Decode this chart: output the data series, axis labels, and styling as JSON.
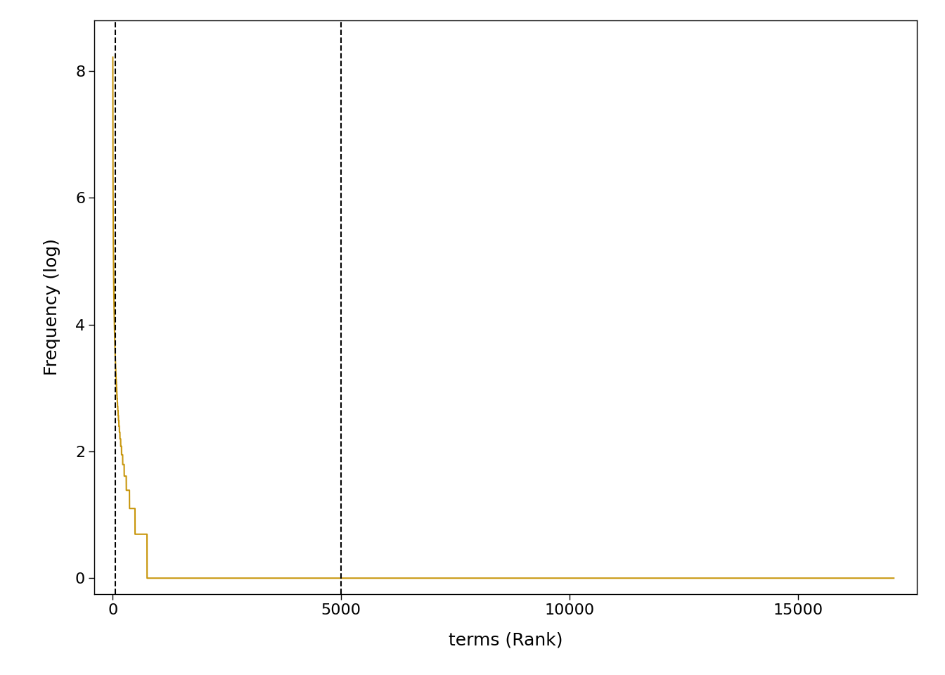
{
  "title": "",
  "xlabel": "terms (Rank)",
  "ylabel": "Frequency (log)",
  "line_color": "#C8960C",
  "dashed_line_color": "black",
  "dashed_x1": 50,
  "dashed_x2": 5000,
  "n_terms": 17100,
  "xlim": [
    -400,
    17600
  ],
  "ylim": [
    -0.25,
    8.8
  ],
  "xticks": [
    0,
    5000,
    10000,
    15000
  ],
  "yticks": [
    0,
    2,
    4,
    6,
    8
  ],
  "background_color": "#ffffff",
  "xlabel_fontsize": 18,
  "ylabel_fontsize": 18,
  "tick_fontsize": 16,
  "linewidth": 1.5,
  "C": 3700,
  "alpha": 1.18
}
